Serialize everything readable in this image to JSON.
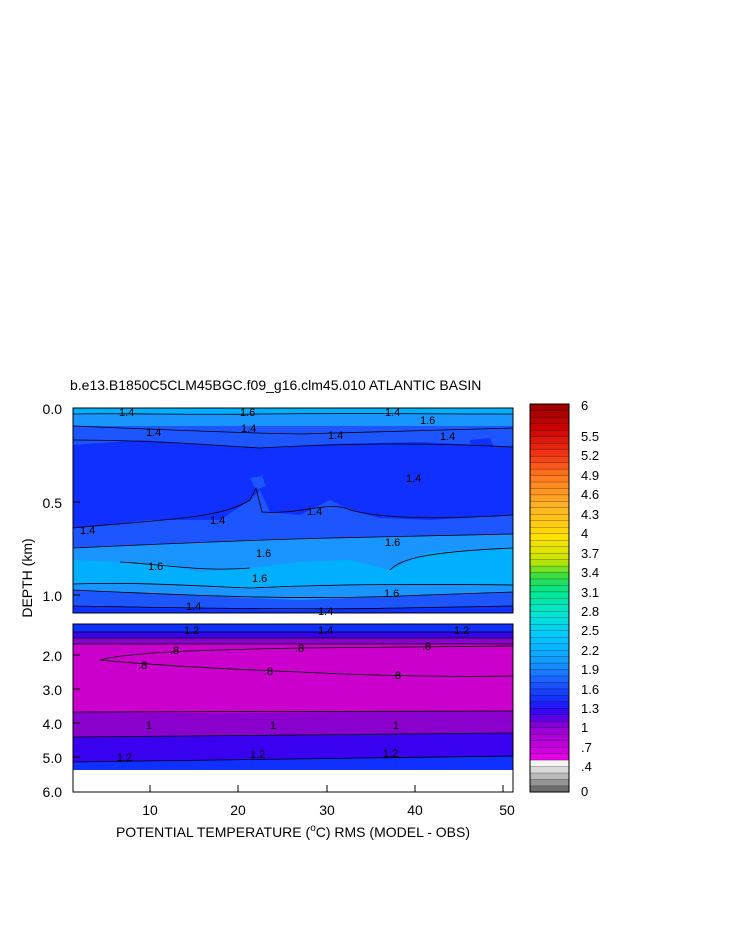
{
  "chart_data": {
    "type": "heatmap",
    "title": "b.e13.B1850C5CLM45BGC.f09_g16.clm45.010 ATLANTIC BASIN",
    "xlabel_prefix": "POTENTIAL TEMPERATURE (",
    "xlabel_unit": "o",
    "xlabel_suffix": "C) RMS (MODEL - OBS)",
    "ylabel": "DEPTH (km)",
    "xlim": [
      1,
      51
    ],
    "x_ticks": [
      "10",
      "20",
      "30",
      "40",
      "50"
    ],
    "upper_panel": {
      "ylim": [
        0.0,
        1.1
      ],
      "y_ticks": [
        "0.0",
        "0.5",
        "1.0"
      ],
      "contour_labels": [
        "1.4",
        "1.6",
        "1.4",
        "1.4",
        "1.6",
        "1.4",
        "1.4",
        "1.4",
        "1.4",
        "1.4",
        "1.4",
        "1.4",
        "1.6",
        "1.6",
        "1.6",
        "1.6",
        "1.6",
        "1.4",
        "1.4"
      ]
    },
    "lower_panel": {
      "ylim": [
        1.1,
        6.0
      ],
      "y_ticks": [
        "2.0",
        "3.0",
        "4.0",
        "5.0",
        "6.0"
      ],
      "contour_labels": [
        "1.2",
        "1.4",
        "1.2",
        ".8",
        ".8",
        ".8",
        ".8",
        ".8",
        ".8",
        "1",
        "1",
        "1",
        "1.2",
        "1.2",
        "1.2"
      ]
    },
    "colorbar": {
      "labels": [
        "6",
        "5.5",
        "5.2",
        "4.9",
        "4.6",
        "4.3",
        "4",
        "3.7",
        "3.4",
        "3.1",
        "2.8",
        "2.5",
        "2.2",
        "1.9",
        "1.6",
        "1.3",
        "1",
        ".7",
        ".4",
        "0"
      ]
    },
    "colors": {
      "band_08": "#cc00cc",
      "band_10": "#8a00cc",
      "band_12": "#3a00f0",
      "band_13": "#1030ff",
      "band_14": "#1d55ff",
      "band_16": "#1a95ff",
      "band_17": "#00b0ff"
    }
  }
}
